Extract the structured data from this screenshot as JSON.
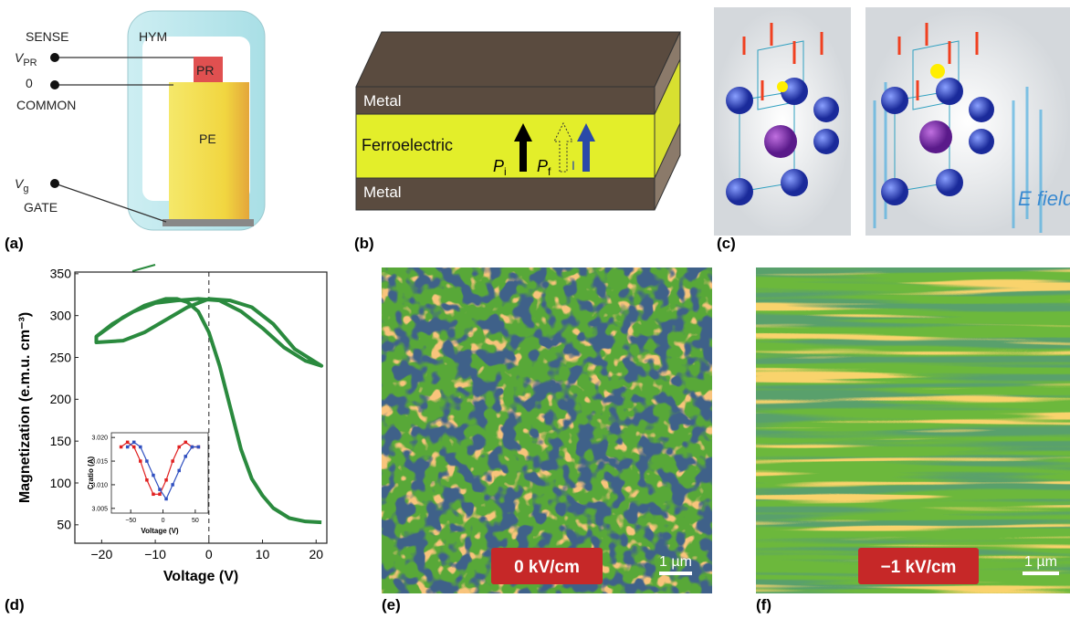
{
  "figure": {
    "panel_labels": [
      "(a)",
      "(b)",
      "(c)",
      "(d)",
      "(e)",
      "(f)"
    ],
    "a": {
      "sense": "SENSE",
      "v_pr": {
        "symbol": "V",
        "subscript": "PR"
      },
      "zero": "0",
      "common": "COMMON",
      "hym": "HYM",
      "pr": "PR",
      "pe": "PE",
      "v_g": {
        "symbol": "V",
        "subscript": "g"
      },
      "gate": "GATE"
    },
    "b": {
      "metal_top": "Metal",
      "ferroelectric": "Ferroelectric",
      "metal_bottom": "Metal",
      "p_i": {
        "symbol": "P",
        "subscript": "i"
      },
      "p_f": {
        "symbol": "P",
        "subscript": "f"
      },
      "current": "I"
    },
    "c": {
      "e_field": "E field"
    },
    "e": {
      "field": "0 kV/cm",
      "scale": "1 µm"
    },
    "f": {
      "field": "−1 kV/cm",
      "scale": "1 µm"
    }
  },
  "chart_data": [
    {
      "type": "line",
      "xlabel": "Voltage (V)",
      "ylabel": "Magnetization (e.m.u. cm⁻³)",
      "xlim": [
        -25,
        22
      ],
      "ylim": [
        28,
        352
      ],
      "xticks": [
        {
          "value": -20,
          "label": "−20"
        },
        {
          "value": -10,
          "label": "−10"
        },
        0,
        10,
        20
      ],
      "yticks": [
        50,
        100,
        150,
        200,
        250,
        300,
        350
      ],
      "x": [
        21,
        18,
        15,
        12,
        10,
        8,
        6,
        4,
        2,
        0,
        -2,
        -4,
        -6,
        -8,
        -12,
        -16,
        -21,
        -21,
        -16,
        -12,
        -8,
        -4,
        0,
        4,
        8,
        12,
        16,
        21,
        18,
        14,
        10,
        6,
        2,
        -2,
        -6,
        -10,
        -14,
        -18,
        -21
      ],
      "series": [
        {
          "color": "#2a8a3e",
          "values": [
            53,
            54,
            58,
            70,
            85,
            105,
            140,
            190,
            240,
            280,
            305,
            316,
            320,
            320,
            312,
            298,
            275,
            268,
            270,
            280,
            295,
            310,
            320,
            318,
            310,
            290,
            260,
            240,
            246,
            262,
            285,
            305,
            318,
            320,
            318,
            315,
            305,
            290,
            275
          ]
        }
      ]
    },
    {
      "type": "line",
      "xlabel": "Voltage (V)",
      "ylabel": "Cratio (A)",
      "xlim": [
        -80,
        70
      ],
      "ylim": [
        3.004,
        3.021
      ],
      "xticks": [
        {
          "value": -50,
          "label": "−50"
        },
        0,
        50
      ],
      "yticks": [
        3.005,
        {
          "value": 3.01,
          "label": "3.010"
        },
        3.015,
        {
          "value": 3.02,
          "label": "3.020"
        }
      ],
      "x": [
        -65,
        -55,
        -45,
        -35,
        -25,
        -15,
        -5,
        5,
        15,
        25,
        35,
        45,
        55
      ],
      "series": [
        {
          "color": "#e02020",
          "values": [
            3.018,
            3.019,
            3.018,
            3.015,
            3.011,
            3.008,
            3.008,
            3.011,
            3.015,
            3.018,
            3.019,
            3.018,
            3.018
          ]
        },
        {
          "color": "#3050c0",
          "values": [
            null,
            3.018,
            3.019,
            3.018,
            3.015,
            3.012,
            3.009,
            3.007,
            3.01,
            3.013,
            3.016,
            3.018,
            3.018
          ]
        }
      ]
    }
  ]
}
